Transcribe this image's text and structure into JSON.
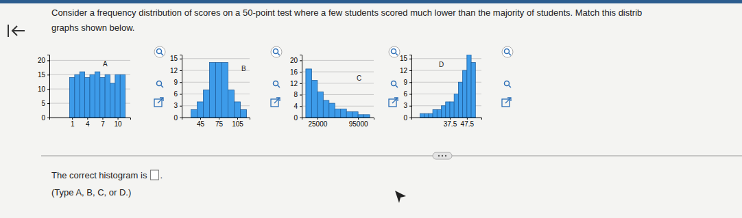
{
  "page": {
    "question": "Consider a frequency distribution of scores on a 50-point test where a few students scored much lower than the majority of students. Match this distrib",
    "question_cont": "graphs shown below.",
    "answer_prompt": "The correct histogram is",
    "answer_end": ".",
    "hint": "(Type A, B, C, or D.)"
  },
  "chart_data": [
    {
      "type": "histogram",
      "annotation": "A",
      "color": "#3d9be9",
      "grid": true,
      "bins": [
        0.5,
        1.5,
        2.5,
        3.5,
        4.5,
        5.5,
        6.5,
        7.5,
        8.5,
        9.5,
        10.5,
        11.5
      ],
      "values": [
        14,
        15,
        16,
        14,
        15,
        16,
        14,
        15,
        12,
        15,
        15
      ],
      "xlim": [
        -3.5,
        12.5
      ],
      "xticks": [
        1,
        4,
        7,
        10
      ],
      "ylim": [
        0,
        22
      ],
      "yticks": [
        0,
        5,
        10,
        15,
        20
      ]
    },
    {
      "type": "histogram",
      "annotation": "B",
      "color": "#3d9be9",
      "grid": true,
      "bins": [
        30,
        40,
        50,
        60,
        70,
        80,
        90,
        100,
        110,
        120
      ],
      "values": [
        2,
        4,
        7,
        14,
        14,
        14,
        7,
        4,
        2
      ],
      "xlim": [
        15,
        125
      ],
      "xticks": [
        45,
        75,
        105
      ],
      "ylim": [
        0,
        16
      ],
      "yticks": [
        0,
        3,
        6,
        9,
        12,
        15
      ]
    },
    {
      "type": "histogram",
      "annotation": "C",
      "color": "#3d9be9",
      "grid": true,
      "bins": [
        5000,
        15000,
        25000,
        35000,
        45000,
        55000,
        65000,
        75000,
        85000,
        95000,
        105000,
        115000
      ],
      "values": [
        17,
        13,
        9,
        6,
        5,
        3,
        3,
        2,
        2,
        1,
        1
      ],
      "xlim": [
        -2000,
        122000
      ],
      "xticks": [
        25000,
        95000
      ],
      "ylim": [
        0,
        22
      ],
      "yticks": [
        0,
        4,
        8,
        12,
        16,
        20
      ]
    },
    {
      "type": "histogram",
      "annotation": "D",
      "color": "#3d9be9",
      "grid": true,
      "bins": [
        20,
        22.5,
        25,
        27.5,
        30,
        32.5,
        35,
        37.5,
        40,
        42.5,
        45,
        47.5,
        50,
        52.5
      ],
      "values": [
        1,
        1,
        1,
        2,
        2,
        3,
        4,
        4,
        6,
        9,
        12,
        16,
        14
      ],
      "xlim": [
        15,
        56
      ],
      "xticks": [
        37.5,
        47.5
      ],
      "ylim": [
        0,
        16
      ],
      "yticks": [
        0,
        3,
        6,
        9,
        12,
        15
      ]
    }
  ]
}
